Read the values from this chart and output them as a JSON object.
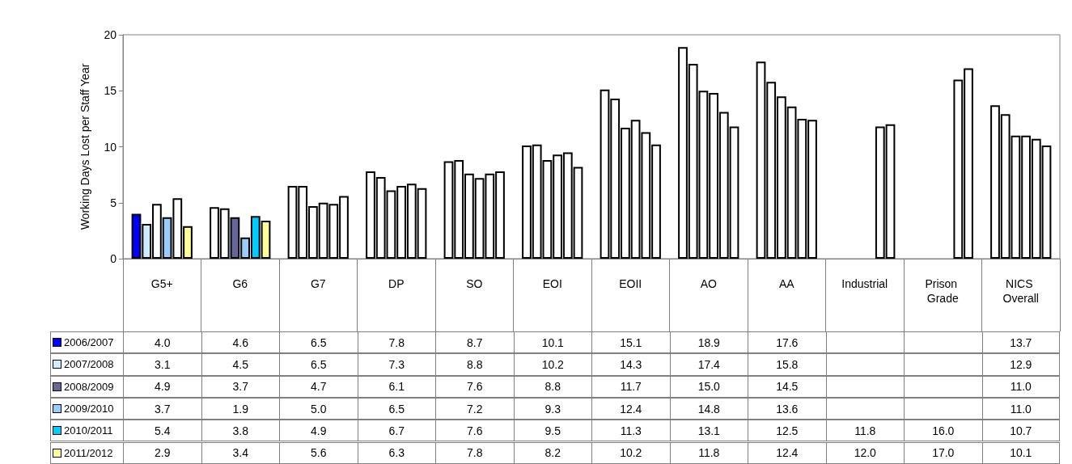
{
  "chart_data": {
    "type": "bar",
    "ylabel": "Working Days Lost per Staff Year",
    "categories": [
      "G5+",
      "G6",
      "G7",
      "DP",
      "SO",
      "EOI",
      "EOII",
      "AO",
      "AA",
      "Industrial",
      "Prison Grade",
      "NICS Overall"
    ],
    "series": [
      {
        "name": "2006/2007",
        "color": "#0000ff",
        "colors": [
          "#0000ff",
          "#ffffff",
          "#ffffff",
          "#ffffff",
          "#ffffff",
          "#ffffff",
          "#ffffff",
          "#ffffff",
          "#ffffff",
          "#ffffff",
          "#ffffff",
          "#ffffff"
        ],
        "values": [
          4.0,
          4.6,
          6.5,
          7.8,
          8.7,
          10.1,
          15.1,
          18.9,
          17.6,
          null,
          null,
          13.7
        ],
        "value_labels": [
          "4.0",
          "4.6",
          "6.5",
          "7.8",
          "8.7",
          "10.1",
          "15.1",
          "18.9",
          "17.6",
          null,
          null,
          "13.7"
        ]
      },
      {
        "name": "2007/2008",
        "color": "#ccecff",
        "colors": [
          "#ccecff",
          "#ffffff",
          "#ffffff",
          "#ffffff",
          "#ffffff",
          "#ffffff",
          "#ffffff",
          "#ffffff",
          "#ffffff",
          "#ffffff",
          "#ffffff",
          "#ffffff"
        ],
        "values": [
          3.1,
          4.5,
          6.5,
          7.3,
          8.8,
          10.2,
          14.3,
          17.4,
          15.8,
          null,
          null,
          12.9
        ],
        "value_labels": [
          "3.1",
          "4.5",
          "6.5",
          "7.3",
          "8.8",
          "10.2",
          "14.3",
          "17.4",
          "15.8",
          null,
          null,
          "12.9"
        ]
      },
      {
        "name": "2008/2009",
        "color": "#666699",
        "colors": [
          "#ffffff",
          "#666699",
          "#ffffff",
          "#ffffff",
          "#ffffff",
          "#ffffff",
          "#ffffff",
          "#ffffff",
          "#ffffff",
          "#ffffff",
          "#ffffff",
          "#ffffff"
        ],
        "values": [
          4.9,
          3.7,
          4.7,
          6.1,
          7.6,
          8.8,
          11.7,
          15.0,
          14.5,
          null,
          null,
          11.0
        ],
        "value_labels": [
          "4.9",
          "3.7",
          "4.7",
          "6.1",
          "7.6",
          "8.8",
          "11.7",
          "15.0",
          "14.5",
          null,
          null,
          "11.0"
        ]
      },
      {
        "name": "2009/2010",
        "color": "#99ccff",
        "colors": [
          "#99ccff",
          "#99ccff",
          "#ffffff",
          "#ffffff",
          "#ffffff",
          "#ffffff",
          "#ffffff",
          "#ffffff",
          "#ffffff",
          "#ffffff",
          "#ffffff",
          "#ffffff"
        ],
        "values": [
          3.7,
          1.9,
          5.0,
          6.5,
          7.2,
          9.3,
          12.4,
          14.8,
          13.6,
          null,
          null,
          11.0
        ],
        "value_labels": [
          "3.7",
          "1.9",
          "5.0",
          "6.5",
          "7.2",
          "9.3",
          "12.4",
          "14.8",
          "13.6",
          null,
          null,
          "11.0"
        ]
      },
      {
        "name": "2010/2011",
        "color": "#00ccff",
        "colors": [
          "#ffffff",
          "#00ccff",
          "#ffffff",
          "#ffffff",
          "#ffffff",
          "#ffffff",
          "#ffffff",
          "#ffffff",
          "#ffffff",
          "#ffffff",
          "#ffffff",
          "#ffffff"
        ],
        "values": [
          5.4,
          3.8,
          4.9,
          6.7,
          7.6,
          9.5,
          11.3,
          13.1,
          12.5,
          11.8,
          16.0,
          10.7
        ],
        "value_labels": [
          "5.4",
          "3.8",
          "4.9",
          "6.7",
          "7.6",
          "9.5",
          "11.3",
          "13.1",
          "12.5",
          "11.8",
          "16.0",
          "10.7"
        ]
      },
      {
        "name": "2011/2012",
        "color": "#ffff99",
        "colors": [
          "#ffff99",
          "#ffff99",
          "#ffffff",
          "#ffffff",
          "#ffffff",
          "#ffffff",
          "#ffffff",
          "#ffffff",
          "#ffffff",
          "#ffffff",
          "#ffffff",
          "#ffffff"
        ],
        "values": [
          2.9,
          3.4,
          5.6,
          6.3,
          7.8,
          8.2,
          10.2,
          11.8,
          12.4,
          12.0,
          17.0,
          10.1
        ],
        "value_labels": [
          "2.9",
          "3.4",
          "5.6",
          "6.3",
          "7.8",
          "8.2",
          "10.2",
          "11.8",
          "12.4",
          "12.0",
          "17.0",
          "10.1"
        ]
      }
    ],
    "ylim": [
      0,
      20
    ],
    "yticks": [
      0,
      5,
      10,
      15,
      20
    ],
    "grid": false,
    "legend": "bottom left"
  }
}
